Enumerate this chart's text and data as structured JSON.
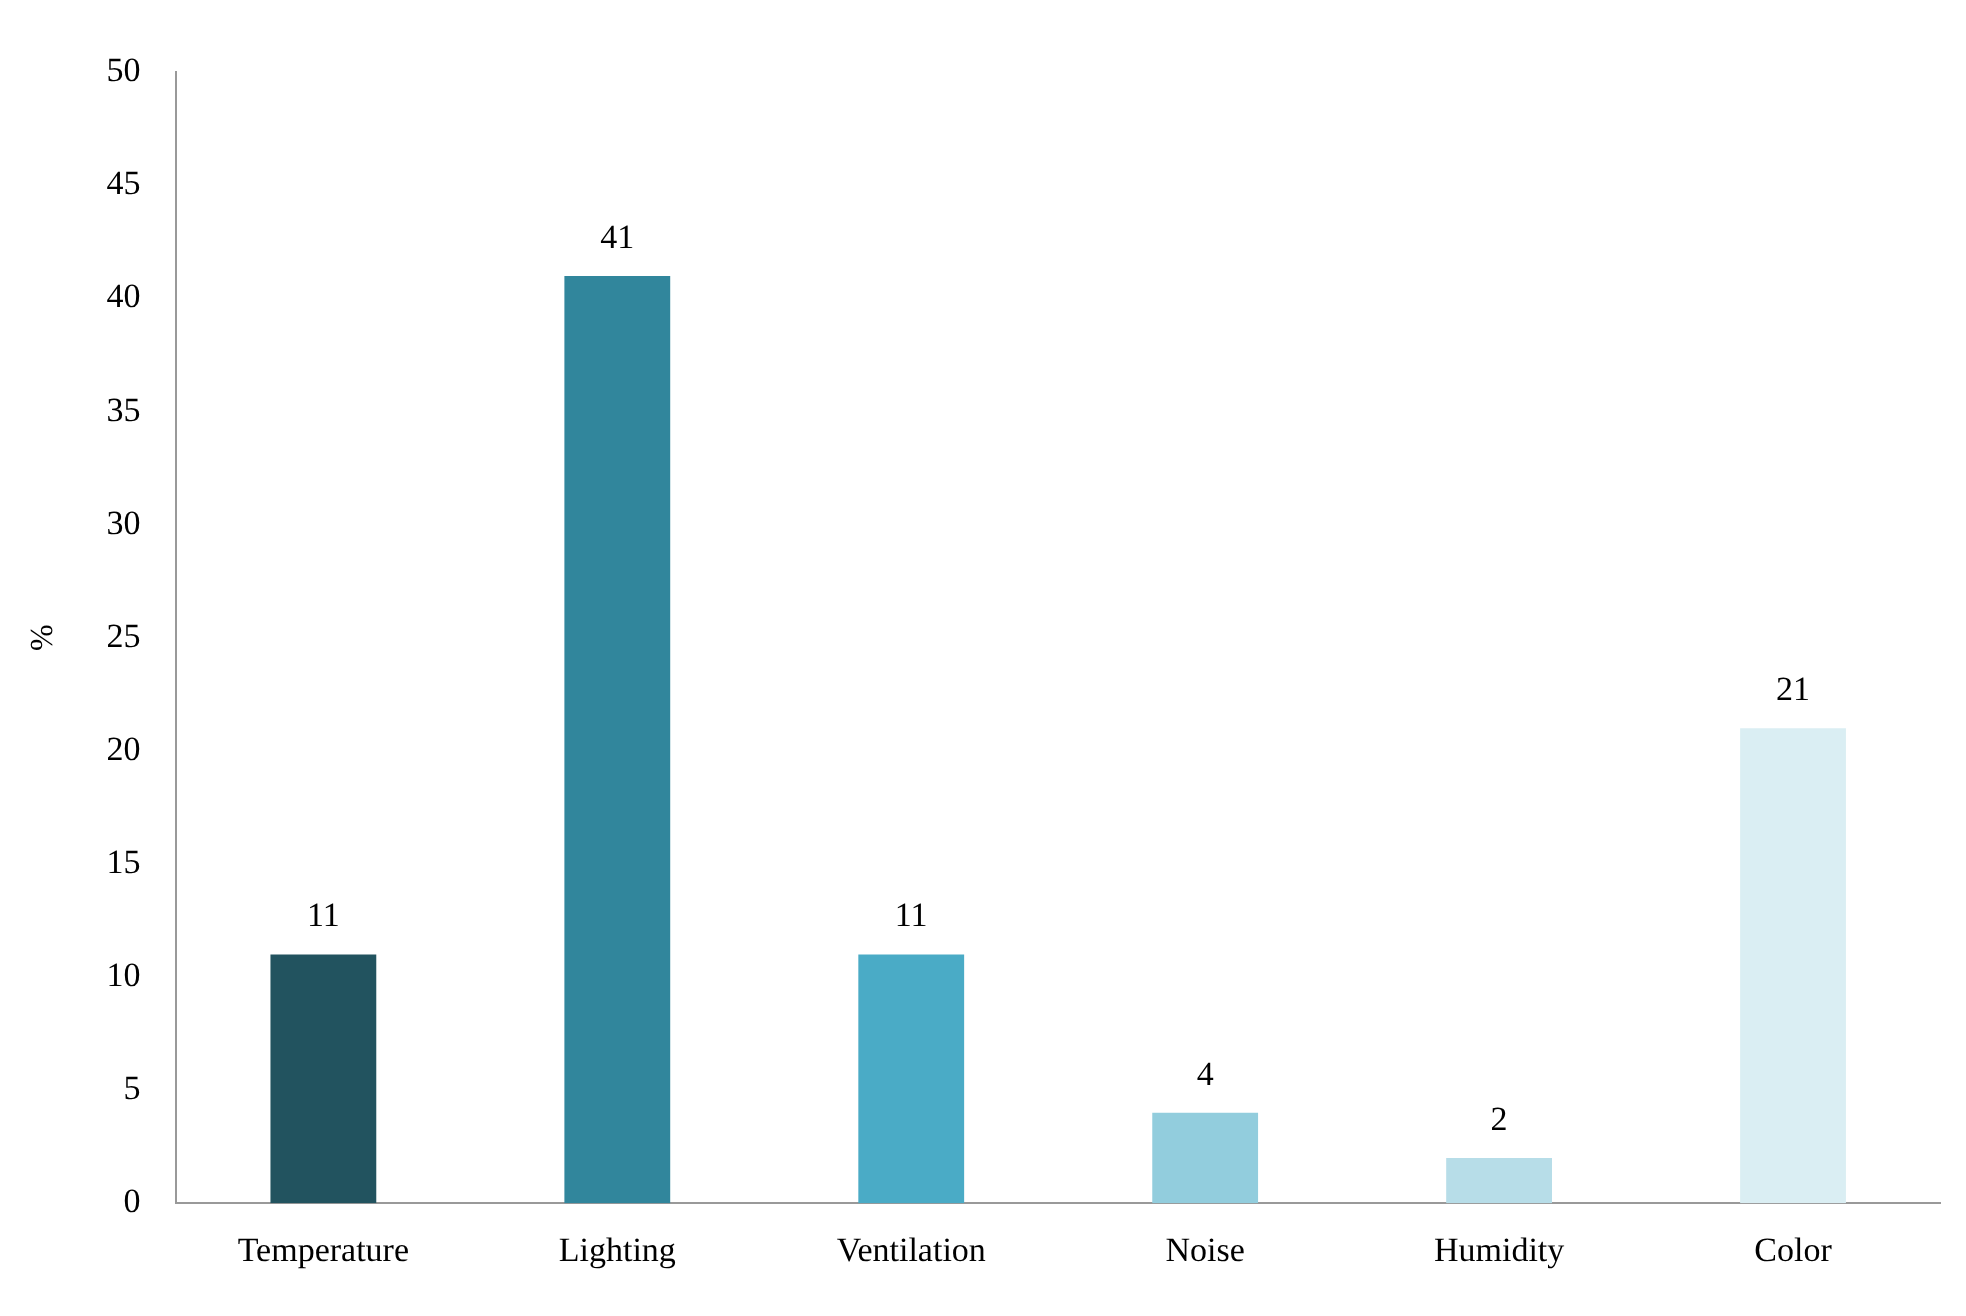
{
  "chart_data": {
    "type": "bar",
    "ylabel": "%",
    "categories": [
      "Temperature",
      "Lighting",
      "Ventilation",
      "Noise",
      "Humidity",
      "Color"
    ],
    "values": [
      11,
      41,
      11,
      4,
      2,
      21
    ],
    "colors": [
      "#22535f",
      "#31869c",
      "#4aabc6",
      "#92cddd",
      "#b7dde8",
      "#daeef3"
    ],
    "ylim": [
      0,
      50
    ],
    "yticks": [
      0,
      5,
      10,
      15,
      20,
      25,
      30,
      35,
      40,
      45,
      50
    ],
    "grid": false,
    "legend": false,
    "data_labels": true
  }
}
